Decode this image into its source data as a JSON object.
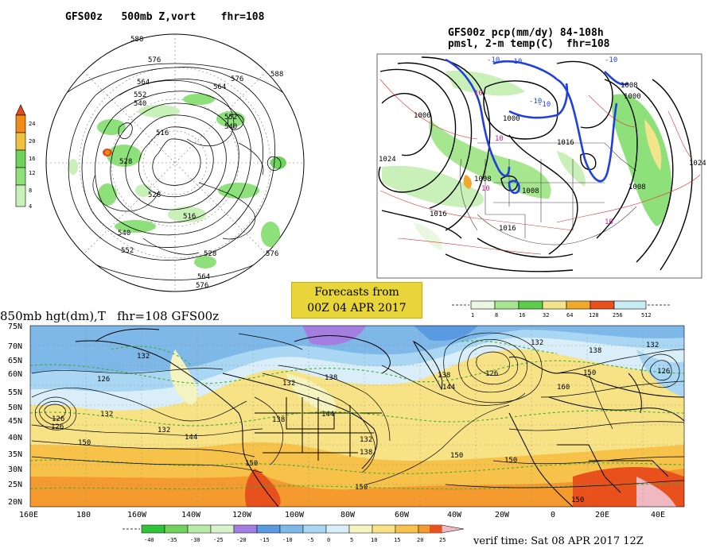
{
  "panels": {
    "hemi": {
      "title": "GFS00z   500mb Z,vort    fhr=108",
      "colorbar_ticks": [
        "24",
        "20",
        "16",
        "12",
        "8",
        "4"
      ],
      "colors": [
        "#e14a1a",
        "#f08c1a",
        "#f0c040",
        "#6fd25c",
        "#8ee07a",
        "#c8f0b8"
      ],
      "contour_labels": [
        "588",
        "576",
        "564",
        "552",
        "540",
        "528",
        "516",
        "564",
        "576",
        "588",
        "552",
        "540",
        "528",
        "516",
        "528",
        "540",
        "552",
        "564",
        "576",
        "576"
      ]
    },
    "pcp": {
      "title_line1": "GFS00z pcp(mm/dy) 84-108h",
      "title_line2": "pmsl, 2-m temp(C)  fhr=108",
      "colorbar_ticks": [
        "1",
        "8",
        "16",
        "32",
        "64",
        "128",
        "256",
        "512"
      ],
      "colors": [
        "#e8f8e0",
        "#a6e68e",
        "#5ccc4a",
        "#f2e48a",
        "#f2a82a",
        "#e8501c",
        "#c8ecf4"
      ],
      "pressure_labels": [
        "1000",
        "1000",
        "1008",
        "1016",
        "1016",
        "1016",
        "1008",
        "1008",
        "1008",
        "1000",
        "1024",
        "1024"
      ],
      "temp_labels": [
        "10",
        "10",
        "10",
        "10",
        "-10",
        "-10",
        "-10",
        "-10",
        "-10"
      ]
    },
    "banner": {
      "line1": "Forecasts from",
      "line2": "00Z 04 APR 2017"
    },
    "main": {
      "title": "850mb hgt(dm),T   fhr=108 GFS00z",
      "lat_labels": [
        "75N",
        "70N",
        "65N",
        "60N",
        "55N",
        "50N",
        "45N",
        "40N",
        "35N",
        "30N",
        "25N",
        "20N"
      ],
      "lon_labels": [
        "160E",
        "180",
        "160W",
        "140W",
        "120W",
        "100W",
        "80W",
        "60W",
        "40W",
        "20W",
        "0",
        "20E",
        "40E"
      ],
      "height_labels": [
        "132",
        "126",
        "132",
        "132",
        "138",
        "144",
        "126",
        "132",
        "138",
        "144",
        "150",
        "126",
        "132",
        "132",
        "138",
        "150",
        "150",
        "150",
        "138",
        "144",
        "126",
        "126",
        "132",
        "138",
        "150",
        "160",
        "150",
        "150"
      ],
      "colorbar_ticks": [
        "-40",
        "-35",
        "-30",
        "-25",
        "-20",
        "-15",
        "-10",
        "-5",
        "0",
        "5",
        "10",
        "15",
        "20",
        "25"
      ],
      "colors": [
        "#2fc43a",
        "#6fd25c",
        "#b9eaa8",
        "#d8f2cc",
        "#a47ee0",
        "#5a9ae0",
        "#7db8e8",
        "#a9d6f2",
        "#d9eef8",
        "#f4f4c0",
        "#f7e386",
        "#f7c24a",
        "#f49a2e",
        "#e8501c"
      ],
      "verif_time": "verif time: Sat 08 APR 2017 12Z"
    }
  }
}
